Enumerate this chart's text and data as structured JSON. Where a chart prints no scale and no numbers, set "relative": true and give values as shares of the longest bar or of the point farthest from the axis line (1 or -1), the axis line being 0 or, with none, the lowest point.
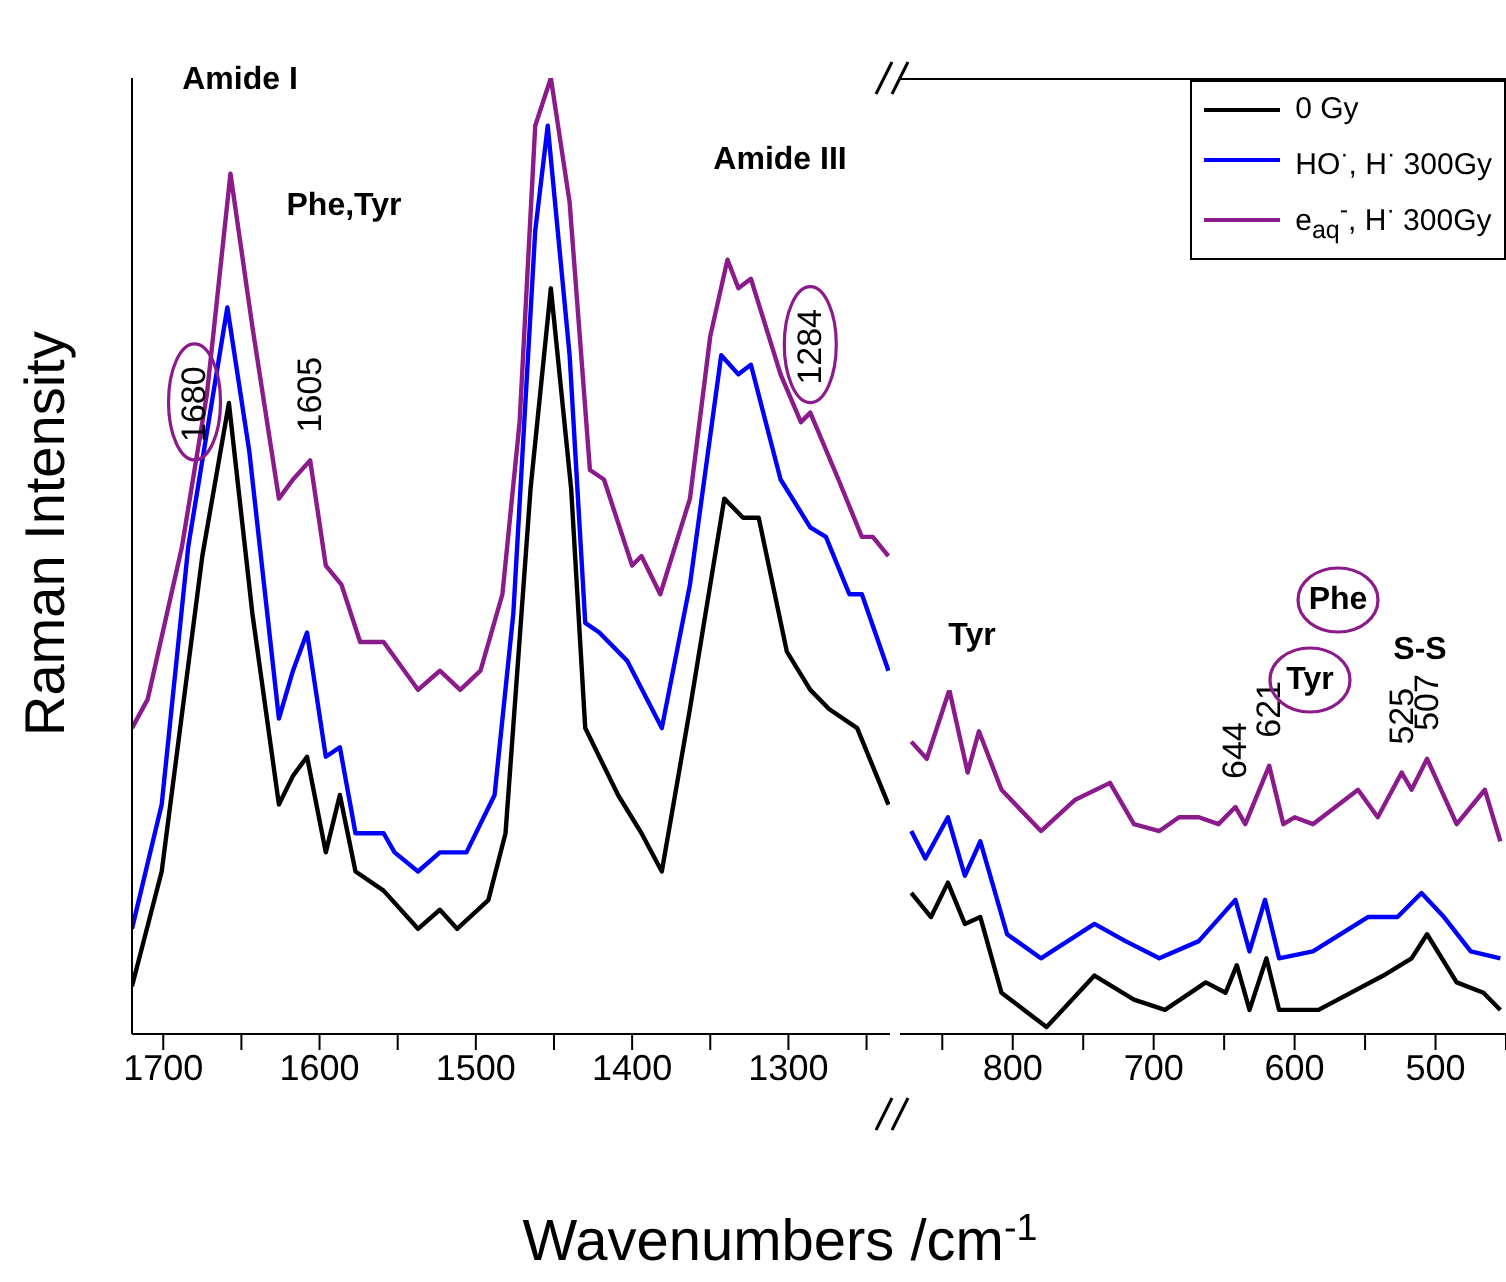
{
  "chart_data": [
    {
      "type": "line",
      "ylabel": "Raman Intensity",
      "xlabel": "Wavenumbers /cm$^{-1}$",
      "relative": true,
      "tick_labels": "x",
      "xlim": [
        1720,
        1235
      ],
      "xticks": [
        1700,
        {
          "value": 1650,
          "label": null
        },
        1600,
        {
          "value": 1550,
          "label": null
        },
        1500,
        {
          "value": 1450,
          "label": null
        },
        1400,
        {
          "value": 1350,
          "label": null
        },
        1300,
        {
          "value": 1250,
          "label": null
        }
      ],
      "series": [
        {
          "color": "#000000",
          "x": [
            1720,
            1701,
            1675,
            1658,
            1643,
            1626,
            1617,
            1608,
            1596,
            1587,
            1577,
            1559,
            1537,
            1523,
            1512,
            1492,
            1481,
            1465,
            1452,
            1439,
            1430,
            1409,
            1394,
            1381,
            1363,
            1341,
            1329,
            1319,
            1301,
            1286,
            1274,
            1256,
            1236
          ],
          "values": [
            0.05,
            0.17,
            0.5,
            0.66,
            0.44,
            0.24,
            0.27,
            0.29,
            0.19,
            0.25,
            0.17,
            0.15,
            0.11,
            0.13,
            0.11,
            0.14,
            0.21,
            0.57,
            0.78,
            0.57,
            0.32,
            0.25,
            0.21,
            0.17,
            0.34,
            0.56,
            0.54,
            0.54,
            0.4,
            0.36,
            0.34,
            0.32,
            0.24
          ]
        },
        {
          "color": "#0000ff",
          "x": [
            1720,
            1701,
            1684,
            1659,
            1645,
            1626,
            1617,
            1608,
            1596,
            1587,
            1577,
            1559,
            1552,
            1537,
            1523,
            1506,
            1488,
            1476,
            1462,
            1454,
            1440,
            1430,
            1421,
            1403,
            1381,
            1363,
            1343,
            1332,
            1324,
            1305,
            1286,
            1276,
            1261,
            1253,
            1236
          ],
          "values": [
            0.11,
            0.24,
            0.51,
            0.76,
            0.61,
            0.33,
            0.38,
            0.42,
            0.29,
            0.3,
            0.21,
            0.21,
            0.19,
            0.17,
            0.19,
            0.19,
            0.25,
            0.44,
            0.84,
            0.95,
            0.71,
            0.43,
            0.42,
            0.39,
            0.32,
            0.47,
            0.71,
            0.69,
            0.7,
            0.58,
            0.53,
            0.52,
            0.46,
            0.46,
            0.38
          ]
        },
        {
          "color": "#8b1a8b",
          "x": [
            1720,
            1710,
            1688,
            1672,
            1657,
            1643,
            1626,
            1617,
            1606,
            1596,
            1586,
            1574,
            1559,
            1537,
            1523,
            1510,
            1497,
            1483,
            1472,
            1462,
            1452,
            1440,
            1427,
            1418,
            1400,
            1394,
            1382,
            1363,
            1350,
            1339,
            1332,
            1324,
            1305,
            1292,
            1286,
            1268,
            1253,
            1246,
            1236
          ],
          "values": [
            0.32,
            0.35,
            0.51,
            0.67,
            0.9,
            0.74,
            0.56,
            0.58,
            0.6,
            0.49,
            0.47,
            0.41,
            0.41,
            0.36,
            0.38,
            0.36,
            0.38,
            0.46,
            0.64,
            0.95,
            1,
            0.87,
            0.59,
            0.58,
            0.49,
            0.5,
            0.46,
            0.56,
            0.73,
            0.81,
            0.78,
            0.79,
            0.69,
            0.64,
            0.65,
            0.58,
            0.52,
            0.52,
            0.5
          ]
        }
      ],
      "annotations": [
        "Amide I",
        "Phe,Tyr",
        {
          "text": "1680",
          "x": 1680,
          "y": 0.59
        },
        {
          "text": "1605",
          "x": 1606,
          "y": 0.6
        },
        "Amide III",
        {
          "text": "1284",
          "x": 1286,
          "y": 0.65
        }
      ]
    },
    {
      "type": "line",
      "relative": true,
      "tick_labels": "x",
      "legend": "top right",
      "xlim": [
        880,
        450
      ],
      "xticks": [
        {
          "value": 850,
          "label": null
        },
        800,
        {
          "value": 750,
          "label": null
        },
        700,
        {
          "value": 650,
          "label": null
        },
        600,
        {
          "value": 550,
          "label": null
        },
        500,
        {
          "value": 450,
          "label": null
        }
      ],
      "series": [
        {
          "name": "0 Gy",
          "color": "#000000",
          "x": [
            872,
            858,
            846,
            834,
            823,
            808,
            776,
            742,
            714,
            692,
            663,
            649,
            641,
            632,
            620,
            611,
            583,
            537,
            517,
            506,
            485,
            466,
            454
          ],
          "values": [
            0.41,
            0.34,
            0.44,
            0.32,
            0.34,
            0.12,
            0.02,
            0.17,
            0.1,
            0.07,
            0.15,
            0.12,
            0.2,
            0.07,
            0.22,
            0.07,
            0.07,
            0.17,
            0.22,
            0.29,
            0.15,
            0.12,
            0.07
          ]
        },
        {
          "name": "HO$^{·}$, H$^{·}$ 300Gy",
          "color": "#0000ff",
          "x": [
            872,
            862,
            846,
            834,
            823,
            804,
            780,
            742,
            720,
            696,
            668,
            642,
            632,
            621,
            611,
            587,
            548,
            527,
            510,
            494,
            475,
            454
          ],
          "values": [
            0.59,
            0.51,
            0.63,
            0.46,
            0.56,
            0.29,
            0.22,
            0.32,
            0.27,
            0.22,
            0.27,
            0.39,
            0.24,
            0.39,
            0.22,
            0.24,
            0.34,
            0.34,
            0.41,
            0.34,
            0.24,
            0.22
          ]
        },
        {
          "name": "e$_{aq}$$^{-}$, H$^{·}$ 300Gy",
          "color": "#8b1a8b",
          "x": [
            872,
            861,
            845,
            832,
            824,
            808,
            780,
            756,
            731,
            714,
            696,
            682,
            668,
            654,
            642,
            635,
            618,
            608,
            600,
            587,
            555,
            541,
            524,
            517,
            506,
            485,
            465,
            454
          ],
          "values": [
            0.85,
            0.8,
            1,
            0.76,
            0.88,
            0.71,
            0.59,
            0.68,
            0.73,
            0.61,
            0.59,
            0.63,
            0.63,
            0.61,
            0.66,
            0.61,
            0.78,
            0.61,
            0.63,
            0.61,
            0.71,
            0.63,
            0.76,
            0.71,
            0.8,
            0.61,
            0.71,
            0.56
          ]
        }
      ],
      "annotations": [
        "Tyr",
        "Tyr",
        "Phe",
        {
          "text": "644",
          "x": 642,
          "y": 0.66
        },
        {
          "text": "621",
          "x": 618,
          "y": 0.78
        },
        {
          "text": "525",
          "x": 524,
          "y": 0.76
        },
        {
          "text": "507",
          "x": 506,
          "y": 0.8
        },
        "S-S"
      ]
    }
  ]
}
